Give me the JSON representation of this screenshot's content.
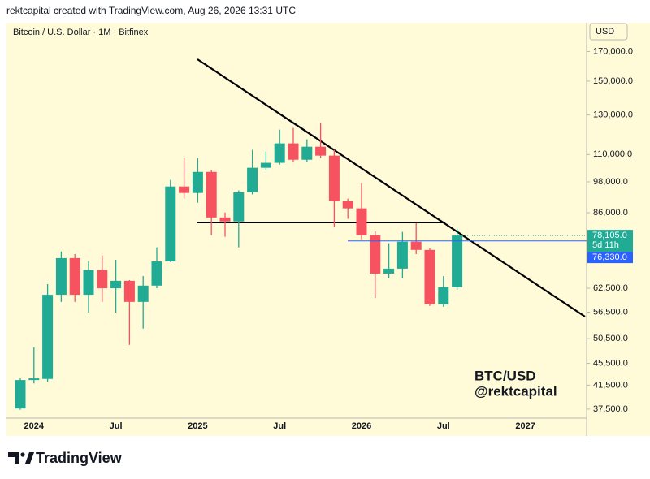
{
  "header": "rektcapital created with TradingView.com, Aug 26, 2026 13:31 UTC",
  "footer": "TradingView",
  "chart_data": {
    "type": "candlestick",
    "title": "Bitcoin / U.S. Dollar · 1M · Bitfinex",
    "currency": "USD",
    "annotation": [
      "BTC/USD",
      "@rektcapital"
    ],
    "categories": [
      null,
      "2024",
      null,
      null,
      null,
      null,
      null,
      "Jul",
      null,
      null,
      null,
      null,
      null,
      "2025",
      null,
      null,
      null,
      null,
      null,
      "Jul",
      null,
      null,
      null,
      null,
      null,
      "2026",
      null,
      null,
      null,
      null,
      null,
      "Jul",
      null,
      null,
      null,
      null,
      null,
      "2027"
    ],
    "open": [
      37600,
      42400,
      42600,
      60800,
      71000,
      60800,
      67500,
      62500,
      64500,
      59000,
      63200,
      70000,
      96100,
      93500,
      102200,
      84300,
      82900,
      93800,
      104000,
      106200,
      115300,
      107600,
      113700,
      109500,
      90300,
      87600,
      78200,
      66500,
      67900,
      76100,
      73500,
      58400,
      62800,
      null,
      null,
      null,
      null,
      null
    ],
    "high": [
      42700,
      48700,
      63600,
      73000,
      72200,
      70000,
      71800,
      70500,
      64700,
      65800,
      74300,
      98800,
      108400,
      108400,
      102900,
      86100,
      94500,
      112200,
      111400,
      122200,
      123100,
      117300,
      125600,
      112200,
      91300,
      97400,
      79500,
      75600,
      79300,
      82300,
      74000,
      65800,
      80400,
      null,
      null,
      null,
      null,
      null
    ],
    "low": [
      37400,
      41800,
      42100,
      59000,
      59000,
      56400,
      59000,
      56400,
      49200,
      52700,
      62500,
      69800,
      91300,
      89700,
      78200,
      77700,
      74300,
      92900,
      102900,
      105400,
      106500,
      106500,
      108400,
      80900,
      83800,
      76900,
      60000,
      65200,
      65200,
      72200,
      58000,
      57800,
      62100,
      null,
      null,
      null,
      null,
      null
    ],
    "close": [
      42400,
      42700,
      60800,
      71000,
      60800,
      67500,
      62500,
      64500,
      59000,
      63200,
      70000,
      96100,
      93500,
      102200,
      84300,
      82900,
      93800,
      104000,
      106200,
      115300,
      107600,
      113700,
      109500,
      90300,
      87600,
      78200,
      66500,
      67900,
      76100,
      73500,
      58400,
      62800,
      78105,
      null,
      null,
      null,
      null,
      null
    ],
    "up_color": "#22ab94",
    "down_color": "#f7525f",
    "log_scale": true,
    "ylim": [
      36100,
      192000
    ],
    "yticks": [
      {
        "value": 170000,
        "label": "170,000.0"
      },
      {
        "value": 150000,
        "label": "150,000.0"
      },
      {
        "value": 130000,
        "label": "130,000.0"
      },
      {
        "value": 110000,
        "label": "110,000.0"
      },
      {
        "value": 98000,
        "label": "98,000.0"
      },
      {
        "value": 86000,
        "label": "86,000.0"
      },
      {
        "value": 62500,
        "label": "62,500.0"
      },
      {
        "value": 56500,
        "label": "56,500.0"
      },
      {
        "value": 50500,
        "label": "50,500.0"
      },
      {
        "value": 45500,
        "label": "45,500.0"
      },
      {
        "value": 41500,
        "label": "41,500.0"
      },
      {
        "value": 37500,
        "label": "37,500.0"
      }
    ],
    "last_price": {
      "value": 78105,
      "label": "78,105.0"
    },
    "countdown": "5d 11h",
    "alert_line": {
      "value": 76330,
      "label": "76,330.0",
      "color": "#2962ff"
    }
  }
}
